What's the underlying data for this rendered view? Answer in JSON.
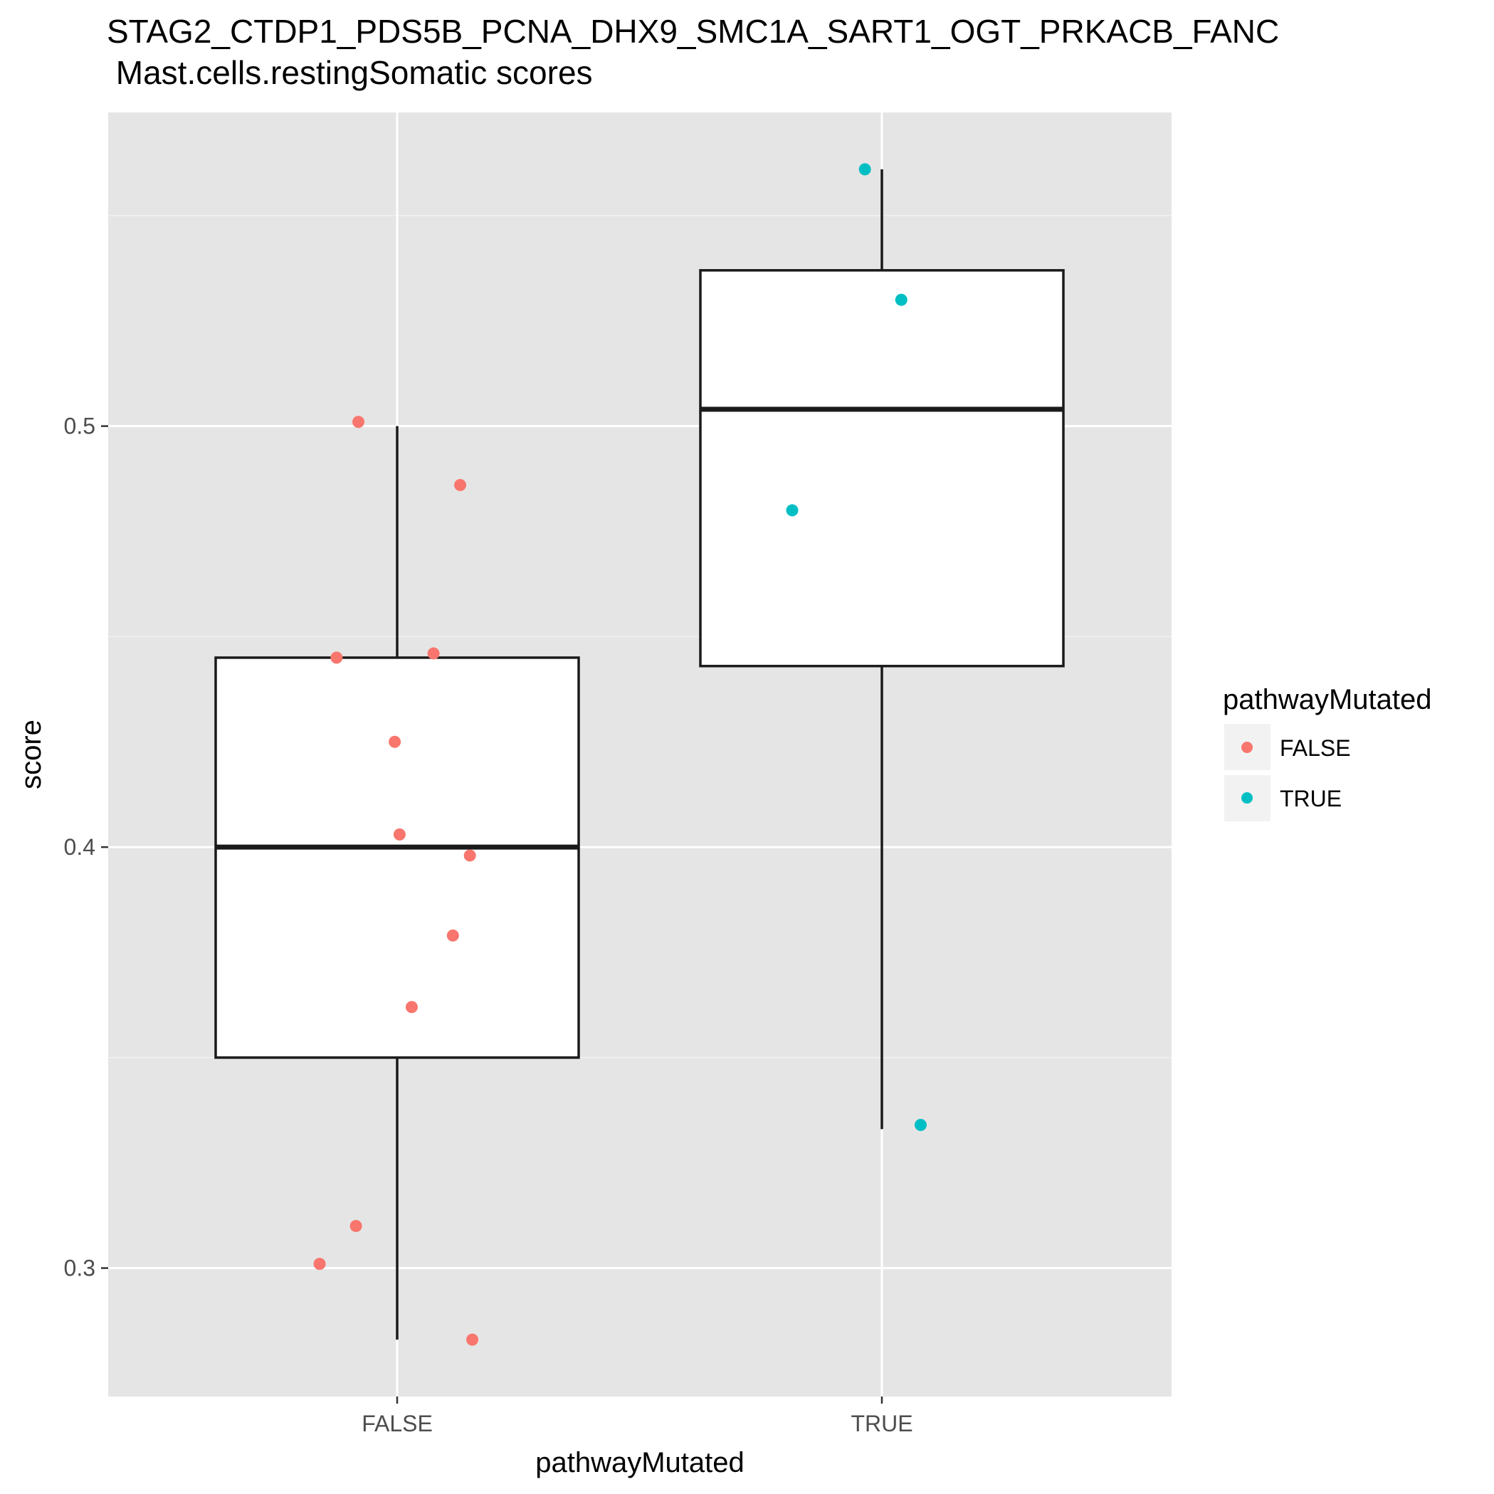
{
  "chart_data": {
    "type": "boxplot",
    "title": "STAG2_CTDP1_PDS5B_PCNA_DHX9_SMC1A_SART1_OGT_PRKACB_FANC",
    "subtitle": " Mast.cells.restingSomatic scores",
    "xlabel": "pathwayMutated",
    "ylabel": "score",
    "categories": [
      "FALSE",
      "TRUE"
    ],
    "ylim": [
      0.2695,
      0.5745
    ],
    "yticks": [
      0.3,
      0.4,
      0.5
    ],
    "ytick_labels": [
      "0.3",
      "0.4",
      "0.5"
    ],
    "grid": true,
    "legend": {
      "title": "pathwayMutated",
      "position": "right",
      "entries": [
        {
          "label": "FALSE",
          "color": "#F8766D"
        },
        {
          "label": "TRUE",
          "color": "#00BFC4"
        }
      ]
    },
    "boxes": [
      {
        "category": "FALSE",
        "lower_whisker": 0.283,
        "q1": 0.35,
        "median": 0.4,
        "q3": 0.445,
        "upper_whisker": 0.5
      },
      {
        "category": "TRUE",
        "lower_whisker": 0.333,
        "q1": 0.443,
        "median": 0.504,
        "q3": 0.537,
        "upper_whisker": 0.561
      }
    ],
    "points": [
      {
        "category": "FALSE",
        "jitter": -0.16,
        "y": 0.501
      },
      {
        "category": "FALSE",
        "jitter": 0.26,
        "y": 0.486
      },
      {
        "category": "FALSE",
        "jitter": -0.25,
        "y": 0.445
      },
      {
        "category": "FALSE",
        "jitter": 0.15,
        "y": 0.446
      },
      {
        "category": "FALSE",
        "jitter": -0.01,
        "y": 0.425
      },
      {
        "category": "FALSE",
        "jitter": 0.01,
        "y": 0.403
      },
      {
        "category": "FALSE",
        "jitter": 0.3,
        "y": 0.398
      },
      {
        "category": "FALSE",
        "jitter": 0.23,
        "y": 0.379
      },
      {
        "category": "FALSE",
        "jitter": 0.06,
        "y": 0.362
      },
      {
        "category": "FALSE",
        "jitter": -0.17,
        "y": 0.31
      },
      {
        "category": "FALSE",
        "jitter": -0.32,
        "y": 0.301
      },
      {
        "category": "FALSE",
        "jitter": 0.31,
        "y": 0.283
      },
      {
        "category": "TRUE",
        "jitter": -0.07,
        "y": 0.561
      },
      {
        "category": "TRUE",
        "jitter": 0.08,
        "y": 0.53
      },
      {
        "category": "TRUE",
        "jitter": -0.37,
        "y": 0.48
      },
      {
        "category": "TRUE",
        "jitter": 0.16,
        "y": 0.334
      }
    ]
  }
}
